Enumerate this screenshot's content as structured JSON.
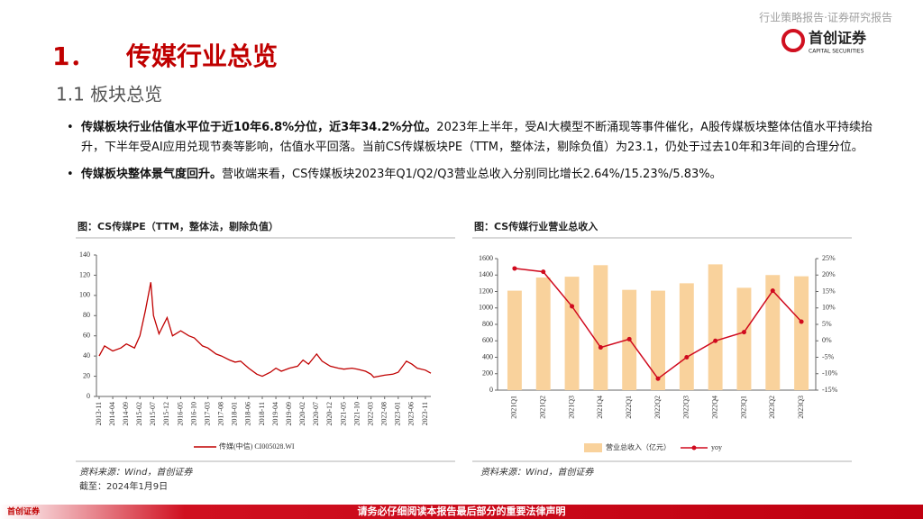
{
  "header": {
    "report_type": "行业策略报告·证券研究报告",
    "logo_cn": "首创证券",
    "logo_en": "CAPITAL SECURITIES"
  },
  "title": {
    "number": "1．",
    "text": "传媒行业总览"
  },
  "subtitle": "1.1 板块总览",
  "bullets": [
    {
      "bold": "传媒板块行业估值水平位于近10年6.8%分位，近3年34.2%分位。",
      "text": "2023年上半年，受AI大模型不断涌现等事件催化，A股传媒板块整体估值水平持续抬升，下半年受AI应用兑现节奏等影响，估值水平回落。当前CS传媒板块PE（TTM，整体法，剔除负值）为23.1，仍处于过去10年和3年间的合理分位。"
    },
    {
      "bold": "传媒板块整体景气度回升。",
      "text": "营收端来看，CS传媒板块2023年Q1/Q2/Q3营业总收入分别同比增长2.64%/15.23%/5.83%。"
    }
  ],
  "chart_data": [
    {
      "type": "line",
      "title": "图：CS传媒PE（TTM，整体法，剔除负值）",
      "x": [
        "2013-11",
        "2014-01",
        "2014-04",
        "2014-07",
        "2014-09",
        "2014-12",
        "2015-02",
        "2015-04",
        "2015-06",
        "2015-07",
        "2015-09",
        "2015-12",
        "2016-02",
        "2016-05",
        "2016-08",
        "2016-10",
        "2017-01",
        "2017-03",
        "2017-06",
        "2017-08",
        "2017-11",
        "2018-01",
        "2018-03",
        "2018-06",
        "2018-09",
        "2018-11",
        "2019-02",
        "2019-04",
        "2019-06",
        "2019-09",
        "2019-12",
        "2020-02",
        "2020-04",
        "2020-07",
        "2020-09",
        "2020-12",
        "2021-03",
        "2021-05",
        "2021-08",
        "2021-10",
        "2022-01",
        "2022-03",
        "2022-04",
        "2022-08",
        "2022-11",
        "2023-01",
        "2023-04",
        "2023-06",
        "2023-08",
        "2023-11",
        "2024-01"
      ],
      "series": [
        {
          "name": "传媒(中信) CI005028.WI",
          "color": "#c00000",
          "values": [
            40,
            50,
            45,
            48,
            52,
            48,
            60,
            85,
            113,
            80,
            62,
            78,
            60,
            65,
            60,
            58,
            50,
            48,
            42,
            40,
            36,
            34,
            35,
            28,
            22,
            20,
            24,
            28,
            25,
            28,
            30,
            36,
            32,
            42,
            35,
            30,
            28,
            27,
            28,
            27,
            25,
            22,
            19,
            21,
            22,
            24,
            35,
            32,
            28,
            26,
            23
          ]
        }
      ],
      "xlim": [
        "2013-11",
        "2024-01"
      ],
      "xticks": [
        "2013-11",
        "2014-04",
        "2014-09",
        "2015-02",
        "2015-07",
        "2015-12",
        "2016-05",
        "2016-10",
        "2017-03",
        "2017-08",
        "2018-01",
        "2018-06",
        "2018-11",
        "2019-04",
        "2019-09",
        "2020-02",
        "2020-07",
        "2020-12",
        "2021-05",
        "2021-10",
        "2022-03",
        "2022-08",
        "2023-01",
        "2023-06",
        "2023-11"
      ],
      "ylim": [
        0,
        140
      ],
      "yticks": [
        0,
        20,
        40,
        60,
        80,
        100,
        120,
        140
      ],
      "grid": false,
      "source": "资料来源：Wind，首创证券",
      "note": "截至：2024年1月9日"
    },
    {
      "type": "bar",
      "title": "图：CS传媒行业营业总收入",
      "categories": [
        "2021Q1",
        "2021Q2",
        "2021Q3",
        "2021Q4",
        "2022Q1",
        "2022Q2",
        "2022Q3",
        "2022Q4",
        "2023Q1",
        "2023Q2",
        "2023Q3"
      ],
      "series": [
        {
          "name": "营业总收入（亿元）",
          "type": "bar",
          "color": "#f9d29c",
          "values": [
            1210,
            1370,
            1380,
            1520,
            1220,
            1210,
            1300,
            1530,
            1245,
            1400,
            1385
          ]
        },
        {
          "name": "yoy",
          "type": "line",
          "axis": "y2",
          "color": "#d00a1e",
          "values": [
            22,
            21,
            10.5,
            -2,
            0.5,
            -11.5,
            -5,
            0,
            2.64,
            15.23,
            5.83
          ]
        }
      ],
      "ylim": [
        0,
        1600
      ],
      "yticks": [
        0,
        200,
        400,
        600,
        800,
        1000,
        1200,
        1400,
        1600
      ],
      "y2lim": [
        -15,
        25
      ],
      "y2ticks": [
        {
          "value": -15,
          "label": "-15%"
        },
        {
          "value": -10,
          "label": "-10%"
        },
        {
          "value": -5,
          "label": "-5%"
        },
        {
          "value": 0,
          "label": "0%"
        },
        {
          "value": 5,
          "label": "5%"
        },
        {
          "value": 10,
          "label": "10%"
        },
        {
          "value": 15,
          "label": "15%"
        },
        {
          "value": 20,
          "label": "20%"
        },
        {
          "value": 25,
          "label": "25%"
        }
      ],
      "grid": false,
      "source": "资料来源：Wind，首创证券"
    }
  ],
  "footer": {
    "disclaimer": "请务必仔细阅读本报告最后部分的重要法律声明",
    "logo": "首创证券"
  }
}
